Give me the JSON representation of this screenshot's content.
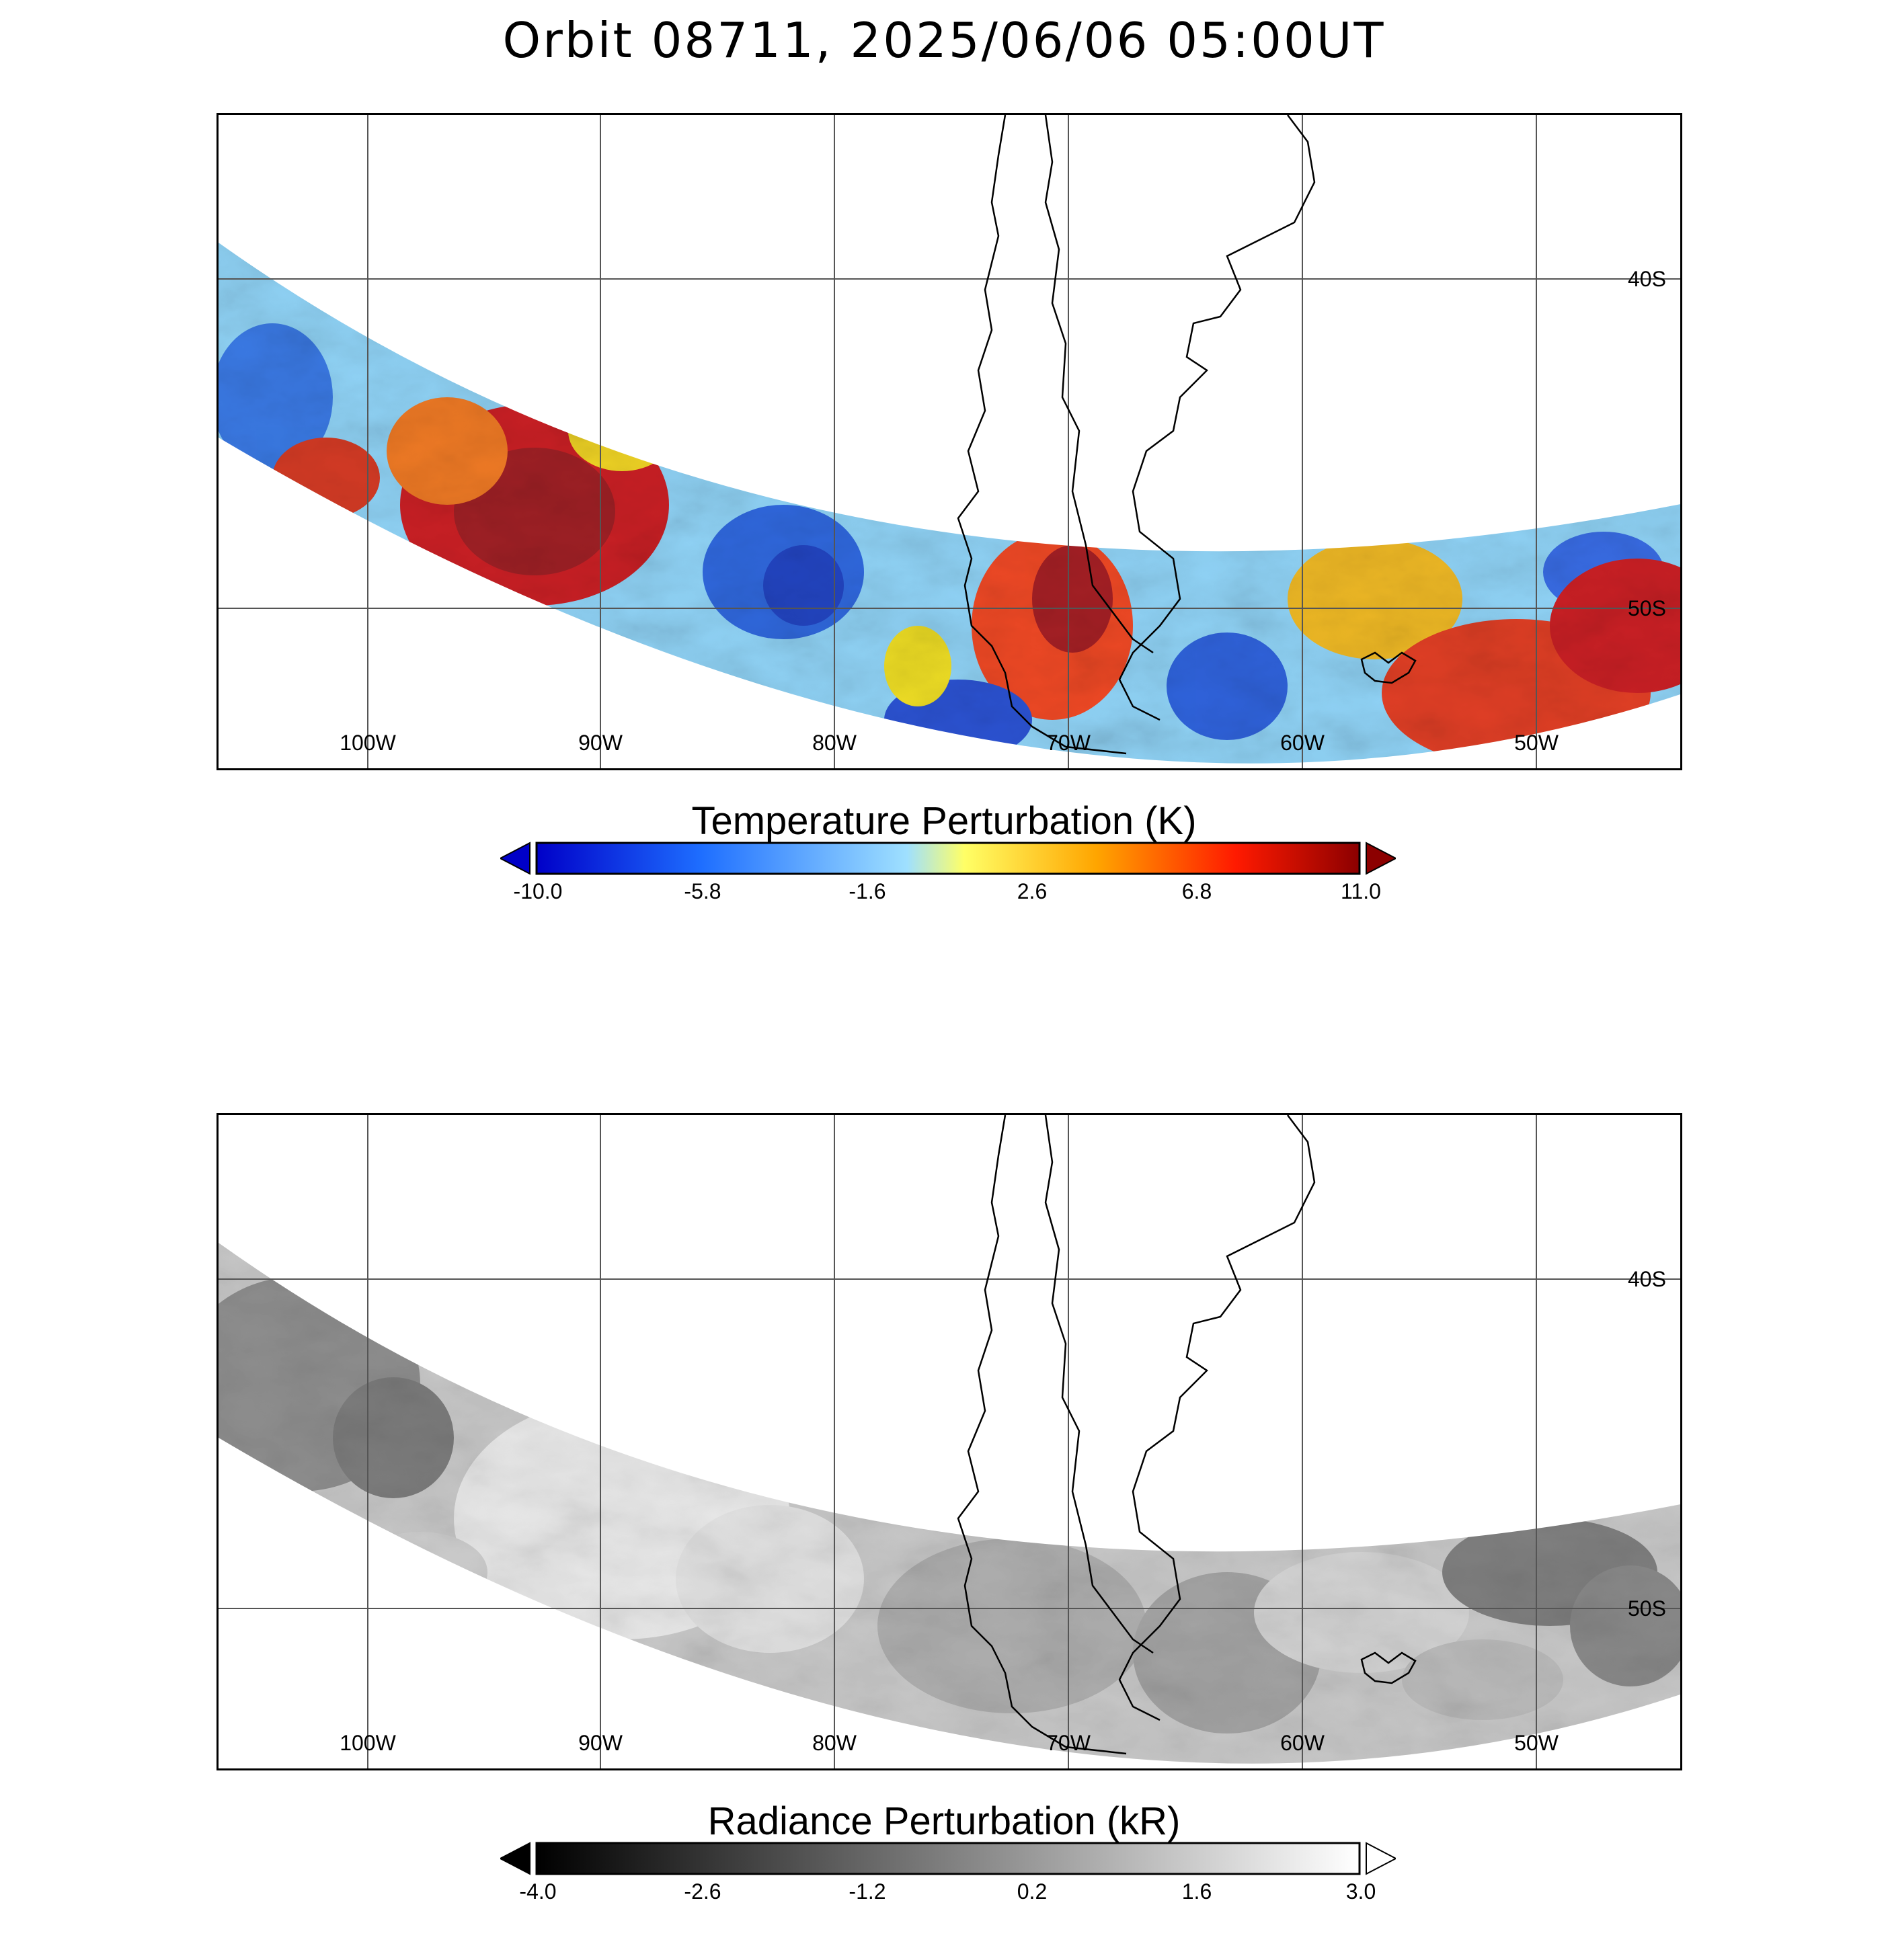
{
  "title": "Orbit 08711, 2025/06/06 05:00UT",
  "map": {
    "lon_labels": [
      "100W",
      "90W",
      "80W",
      "70W",
      "60W",
      "50W"
    ],
    "lat_labels": [
      "40S",
      "50S"
    ]
  },
  "panels": [
    {
      "colorbar_title": "Temperature Perturbation (K)",
      "colorbar_ticks": [
        "-10.0",
        "-5.8",
        "-1.6",
        "2.6",
        "6.8",
        "11.0"
      ],
      "range": [
        -10.0,
        11.0
      ],
      "colormap": [
        "#0000c8",
        "#1e6eff",
        "#9fe0ff",
        "#ffff66",
        "#ffa500",
        "#ff1a00",
        "#8c0000"
      ]
    },
    {
      "colorbar_title": "Radiance Perturbation (kR)",
      "colorbar_ticks": [
        "-4.0",
        "-2.6",
        "-1.2",
        "0.2",
        "1.6",
        "3.0"
      ],
      "range": [
        -4.0,
        3.0
      ],
      "colormap": [
        "#000000",
        "#ffffff"
      ]
    }
  ]
}
